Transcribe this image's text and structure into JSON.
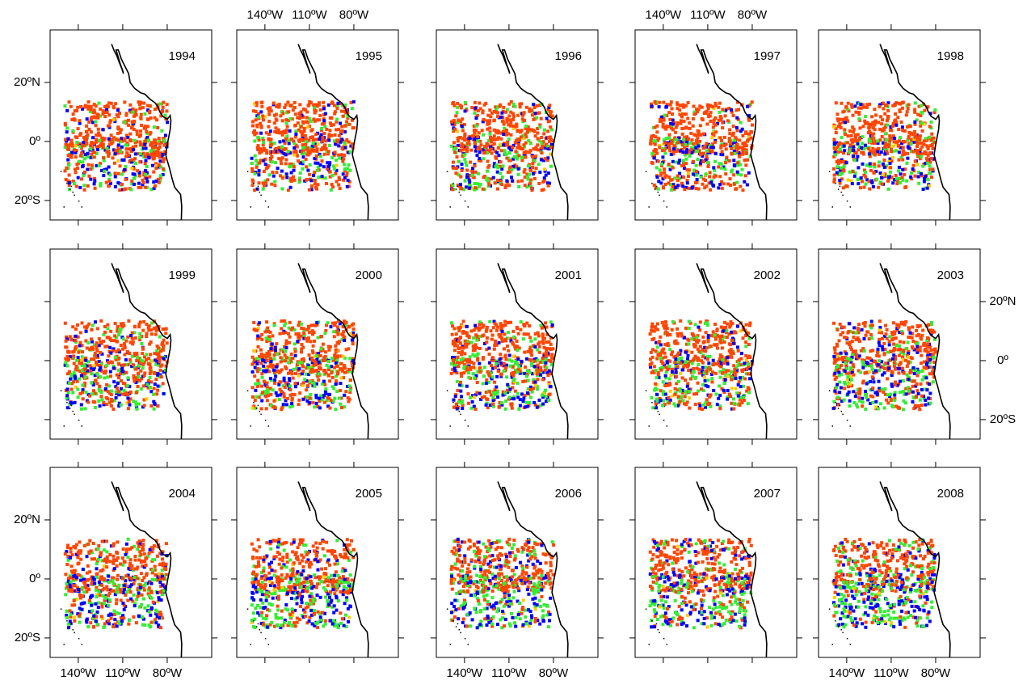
{
  "panels": [
    {
      "year": "1994"
    },
    {
      "year": "1995"
    },
    {
      "year": "1996"
    },
    {
      "year": "1997"
    },
    {
      "year": "1998"
    },
    {
      "year": "1999"
    },
    {
      "year": "2000"
    },
    {
      "year": "2001"
    },
    {
      "year": "2002"
    },
    {
      "year": "2003"
    },
    {
      "year": "2004"
    },
    {
      "year": "2005"
    },
    {
      "year": "2006"
    },
    {
      "year": "2007"
    },
    {
      "year": "2008"
    }
  ],
  "xlim": [
    -159,
    -50
  ],
  "ylim": [
    -26.6,
    37.8
  ],
  "xticks": [
    {
      "value": -140,
      "label": "140ºW"
    },
    {
      "value": -110,
      "label": "110ºW"
    },
    {
      "value": -80,
      "label": "80ºW"
    }
  ],
  "yticks": [
    {
      "value": 20,
      "label": "20ºN"
    },
    {
      "value": 0,
      "label": "0º"
    },
    {
      "value": -20,
      "label": "20ºS"
    }
  ]
}
